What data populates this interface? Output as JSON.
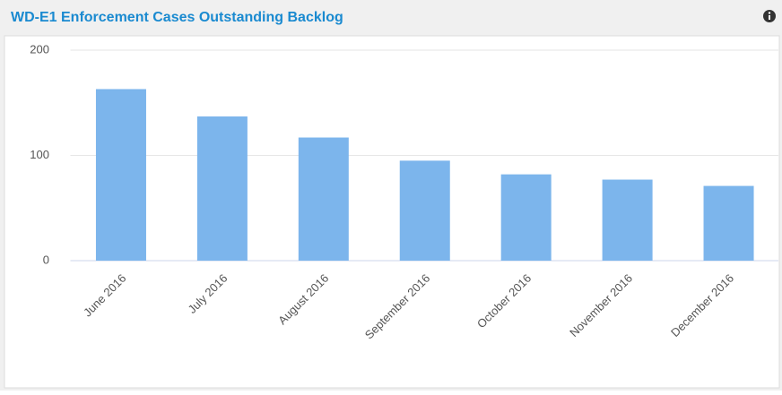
{
  "chart_data": {
    "type": "bar",
    "title": "WD-E1 Enforcement Cases Outstanding Backlog",
    "categories": [
      "June 2016",
      "July 2016",
      "August 2016",
      "September 2016",
      "October 2016",
      "November 2016",
      "December 2016"
    ],
    "values": [
      163,
      137,
      117,
      95,
      82,
      77,
      71
    ],
    "color": "#7cb5ec",
    "ylim": [
      0,
      200
    ],
    "yticks": [
      0,
      100,
      200
    ],
    "grid": true
  }
}
